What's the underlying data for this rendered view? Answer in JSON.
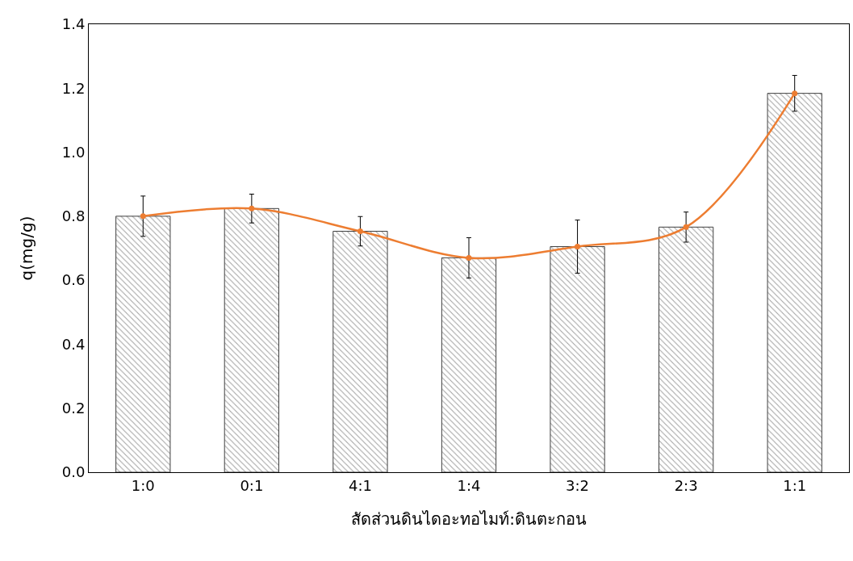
{
  "chart_data": {
    "type": "bar",
    "xlabel": "สัดส่วนดินไดอะทอไมท์:ดินตะกอน",
    "ylabel": "q(mg/g)",
    "categories": [
      "1:0",
      "0:1",
      "4:1",
      "1:4",
      "3:2",
      "2:3",
      "1:1"
    ],
    "series": [
      {
        "color": "#404040",
        "values": [
          0.8,
          0.824,
          0.753,
          0.67,
          0.705,
          0.766,
          1.184
        ],
        "errors": [
          0.063,
          0.045,
          0.046,
          0.063,
          0.083,
          0.047,
          0.056
        ]
      },
      {
        "type": "line",
        "color": "#ed7d31",
        "marker": "circle",
        "line_style": "solid",
        "values": [
          0.8,
          0.824,
          0.753,
          0.67,
          0.705,
          0.766,
          1.184
        ]
      }
    ],
    "ylim": [
      0,
      1.4
    ],
    "yticks": [
      {
        "value": 0,
        "label": "0.0"
      },
      {
        "value": 0.2,
        "label": "0.2"
      },
      {
        "value": 0.4,
        "label": "0.4"
      },
      {
        "value": 0.6,
        "label": "0.6"
      },
      {
        "value": 0.8,
        "label": "0.8"
      },
      {
        "value": 1.0,
        "label": "1.0"
      },
      {
        "value": 1.2,
        "label": "1.2"
      },
      {
        "value": 1.4,
        "label": "1.4"
      }
    ]
  }
}
